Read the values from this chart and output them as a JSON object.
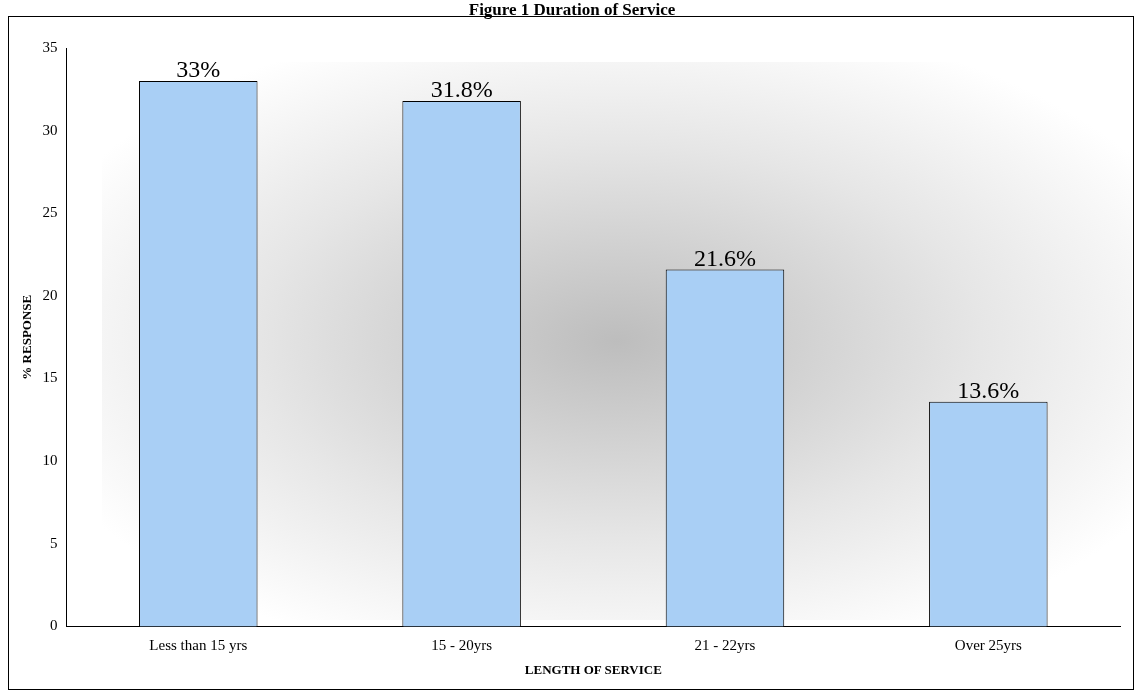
{
  "chart_data": {
    "type": "bar",
    "title": "Figure 1 Duration of Service",
    "xlabel": "LENGTH OF SERVICE",
    "ylabel": "% RESPONSE",
    "categories": [
      "Less than 15 yrs",
      "15 - 20yrs",
      "21 - 22yrs",
      "Over 25yrs"
    ],
    "values": [
      33,
      31.8,
      21.6,
      13.6
    ],
    "value_labels": [
      "33%",
      "31.8%",
      "21.6%",
      "13.6%"
    ],
    "color": "#a9cff5",
    "ylim": [
      0,
      35
    ],
    "yticks": [
      0,
      5,
      10,
      15,
      20,
      25,
      30,
      35
    ],
    "grid": false,
    "legend": false
  }
}
